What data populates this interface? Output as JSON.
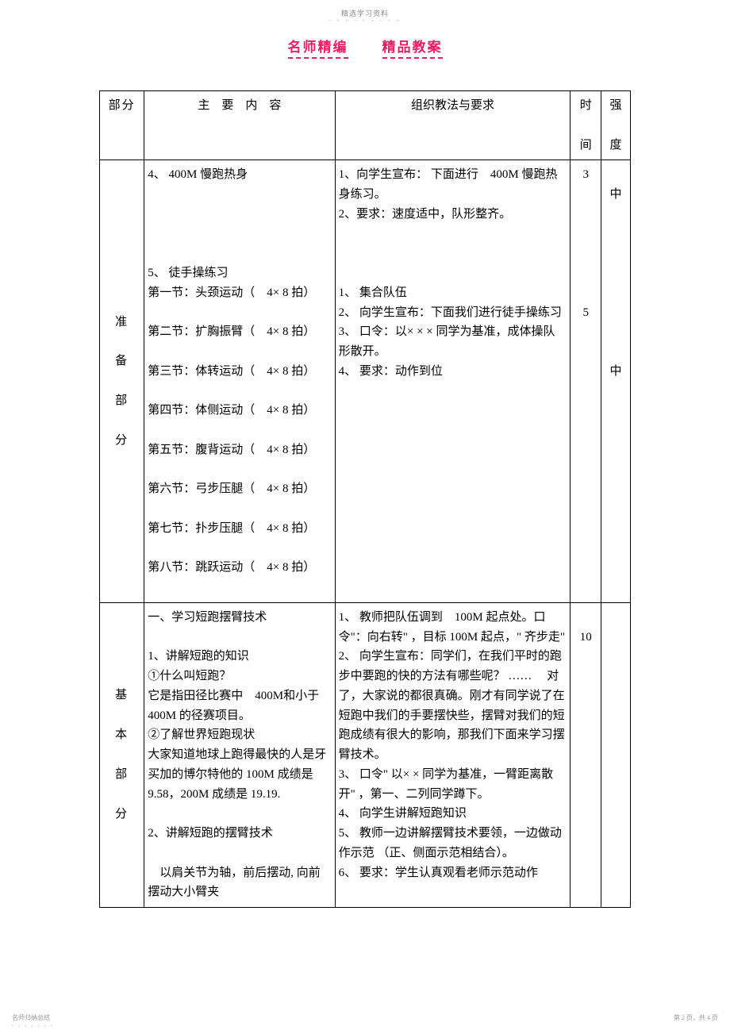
{
  "topHeader": "精选学习资料",
  "topDots": "- - - - - - - - -",
  "titleLeft": "名师精编",
  "titleRight": "精品教案",
  "headers": {
    "section": "部分",
    "content": "主　要　内　容",
    "teaching": "组织教法与要求",
    "time": "时",
    "timeBottom": "间",
    "intensity": "强",
    "intensityBottom": "度"
  },
  "prep": {
    "sectionChars": [
      "准",
      "备",
      "部",
      "分"
    ],
    "item4": "4、 400M 慢跑热身",
    "item5": "5、 徒手操练习",
    "ex1": "第一节：头颈运动（　4× 8 拍）",
    "ex2": "第二节：扩胸振臂（　4× 8 拍）",
    "ex3": "第三节：体转运动（　4× 8 拍）",
    "ex4": "第四节：体侧运动（　4× 8 拍）",
    "ex5": "第五节：腹背运动（　4× 8 拍）",
    "ex6": "第六节：弓步压腿（　4× 8 拍）",
    "ex7": "第七节：扑步压腿（　4× 8 拍）",
    "ex8": "第八节：跳跃运动（　4× 8 拍）",
    "teach1": "1、向学生宣布： 下面进行　400M 慢跑热身练习。",
    "teach2": "2、要求：速度适中，队形整齐。",
    "teach_b1": "1、 集合队伍",
    "teach_b2": "2、 向学生宣布：下面我们进行徒手操练习",
    "teach_b3": "3、 口令：以× × × 同学为基准，成体操队形散开。",
    "teach_b4": "4、 要求：动作到位",
    "time1": "3",
    "time2": "5",
    "intensity1": "中",
    "intensity2": "中"
  },
  "basic": {
    "sectionChars": [
      "基",
      "本",
      "部",
      "分"
    ],
    "h1": "一、学习短跑摆臂技术",
    "p1": "1、讲解短跑的知识",
    "p2": "①什么叫短跑？",
    "p3": "它是指田径比赛中　400M和小于　400M 的径赛项目。",
    "p4": "②了解世界短跑现状",
    "p5": "大家知道地球上跑得最快的人是牙买加的博尔特他的 100M 成绩是 9.58，200M 成绩是 19.19.",
    "p6": "2、讲解短跑的摆臂技术",
    "p7": "　以肩关节为轴，前后摆动, 向前摆动大小臂夹",
    "teach1": "1、 教师把队伍调到　100M 起点处。口令\"：向右转\" ，目标 100M 起点，\" 齐步走\"",
    "teach2": "2、 向学生宣布：同学们，在我们平时的跑步中要跑的快的方法有哪些呢？ …… 　对了，大家说的都很真确。刚才有同学说了在短跑中我们的手要摆快些，摆臂对我们的短跑成绩有很大的影响，那我们下面来学习摆臂技术。",
    "teach3": "3、 口令\" 以× × 同学为基准，一臂距离散开\" ，第一、二列同学蹲下。",
    "teach4": "4、 向学生讲解短跑知识",
    "teach5": "5、 教师一边讲解摆臂技术要领，一边做动作示范 （正、侧面示范相结合）。",
    "teach6": "6、 要求：学生认真观看老师示范动作",
    "time1": "10"
  },
  "footer": {
    "left": "名师归纳总结",
    "leftDots": "- - - - - - -",
    "right": "第 2 页，共 4 页"
  }
}
